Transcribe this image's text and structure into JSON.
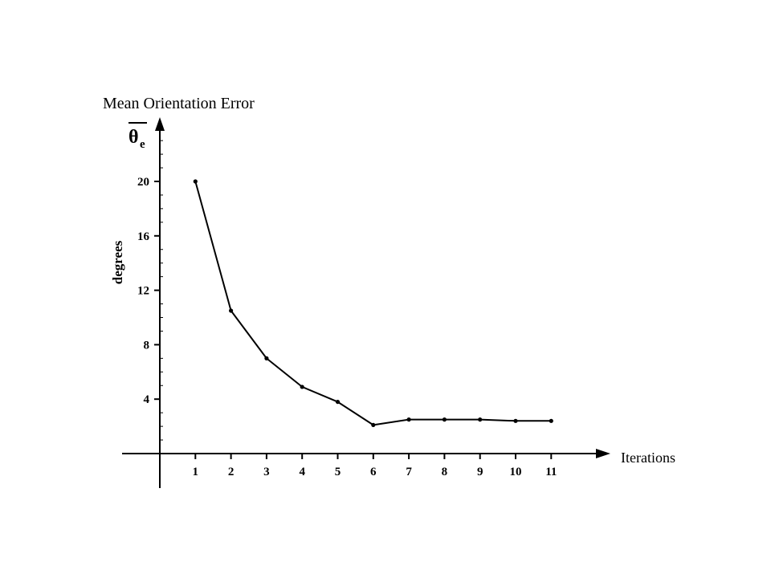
{
  "chart_data": {
    "type": "line",
    "title": "Mean Orientation Error",
    "y_symbol": "θ",
    "y_symbol_sub": "e",
    "ylabel": "degrees",
    "xlabel": "Iterations",
    "x_ticks": [
      "1",
      "2",
      "3",
      "4",
      "5",
      "6",
      "7",
      "8",
      "9",
      "10",
      "11"
    ],
    "y_ticks": [
      "4",
      "8",
      "12",
      "16",
      "20"
    ],
    "xlim": [
      0,
      12.5
    ],
    "ylim": [
      -2.6,
      24.5
    ],
    "grid": false,
    "x": [
      1,
      2,
      3,
      4,
      5,
      6,
      7,
      8,
      9,
      10,
      11
    ],
    "y": [
      20,
      10.5,
      7,
      4.9,
      3.8,
      2.1,
      2.5,
      2.5,
      2.5,
      2.4,
      2.4
    ],
    "line_color": "#000000"
  }
}
